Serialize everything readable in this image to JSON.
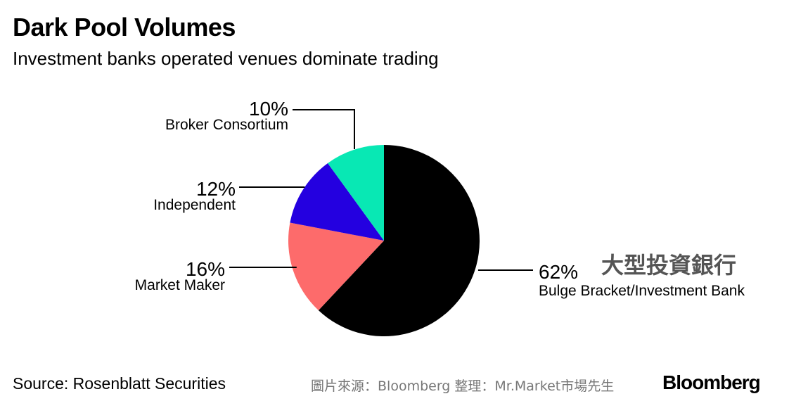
{
  "header": {
    "title": "Dark Pool Volumes",
    "subtitle": "Investment banks operated venues dominate trading"
  },
  "chart_data": {
    "type": "pie",
    "title": "Dark Pool Volumes",
    "subtitle": "Investment banks operated venues dominate trading",
    "slices": [
      {
        "label": "Bulge Bracket/Investment Bank",
        "value": 62,
        "value_label": "62%",
        "color": "#000000"
      },
      {
        "label": "Market Maker",
        "value": 16,
        "value_label": "16%",
        "color": "#fd6b6b"
      },
      {
        "label": "Independent",
        "value": 12,
        "value_label": "12%",
        "color": "#2400e0"
      },
      {
        "label": "Broker Consortium",
        "value": 10,
        "value_label": "10%",
        "color": "#08e8b4"
      }
    ],
    "annotation": "大型投資銀行",
    "annotation_color": "#555555"
  },
  "footer": {
    "source": "Source: Rosenblatt Securities",
    "credit": "圖片來源：Bloomberg  整理：Mr.Market市場先生",
    "brand": "Bloomberg"
  }
}
